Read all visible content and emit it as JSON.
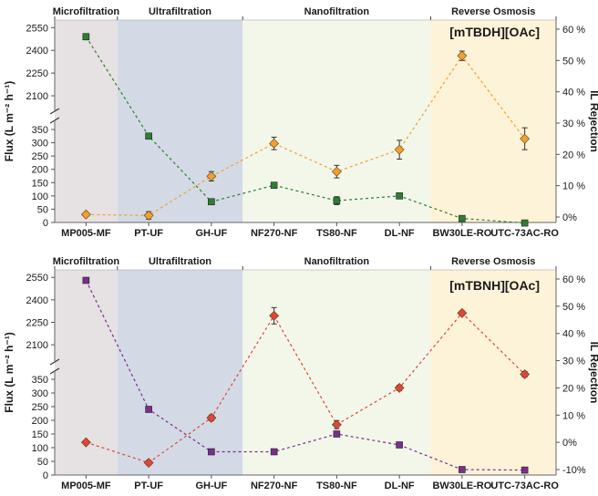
{
  "chart_data": [
    {
      "type": "line",
      "title": "[mTBDH][OAc]",
      "categories": [
        "MP005-MF",
        "PT-UF",
        "GH-UF",
        "NF270-NF",
        "TS80-NF",
        "DL-NF",
        "BW30LE-RO",
        "UTC-73AC-RO"
      ],
      "regions": [
        {
          "label": "Microfiltration",
          "color": "#e6e1e3",
          "categories": [
            "MP005-MF"
          ]
        },
        {
          "label": "Ultrafiltration",
          "color": "#d3dae5",
          "categories": [
            "PT-UF",
            "GH-UF"
          ]
        },
        {
          "label": "Nanofiltration",
          "color": "#f3f7ea",
          "categories": [
            "NF270-NF",
            "TS80-NF",
            "DL-NF"
          ]
        },
        {
          "label": "Reverse Osmosis",
          "color": "#fdf3d8",
          "categories": [
            "BW30LE-RO",
            "UTC-73AC-RO"
          ]
        }
      ],
      "ylabel": "Flux (L m⁻² h⁻¹)",
      "y2label": "IL Rejection",
      "y_lower_ticks": [
        "0",
        "50",
        "100",
        "150",
        "200",
        "250",
        "300",
        "350"
      ],
      "y_upper_ticks": [
        "2100",
        "2250",
        "2400",
        "2550"
      ],
      "y2_ticks": [
        "0%",
        "10 %",
        "20 %",
        "30 %",
        "40 %",
        "50 %",
        "60 %"
      ],
      "y2lim": [
        0,
        60
      ],
      "series": [
        {
          "name": "Flux",
          "axis": "left",
          "color": "#2e7d32",
          "marker": "square",
          "values": [
            2490,
            325,
            78,
            140,
            82,
            100,
            15,
            -2
          ],
          "errors": [
            20,
            0,
            8,
            10,
            15,
            8,
            5,
            5
          ]
        },
        {
          "name": "IL Rejection",
          "axis": "right",
          "color": "#f0a030",
          "marker": "diamond",
          "values": [
            0.8,
            0.5,
            13.0,
            23.5,
            14.5,
            21.5,
            51.5,
            25.0
          ],
          "errors": [
            0.5,
            1.2,
            1.5,
            2.0,
            2.0,
            3.0,
            1.5,
            3.5
          ]
        }
      ]
    },
    {
      "type": "line",
      "title": "[mTBNH][OAc]",
      "categories": [
        "MP005-MF",
        "PT-UF",
        "GH-UF",
        "NF270-NF",
        "TS80-NF",
        "DL-NF",
        "BW30LE-RO",
        "UTC-73AC-RO"
      ],
      "regions": [
        {
          "label": "Microfiltration",
          "color": "#e6e1e3",
          "categories": [
            "MP005-MF"
          ]
        },
        {
          "label": "Ultrafiltration",
          "color": "#d3dae5",
          "categories": [
            "PT-UF",
            "GH-UF"
          ]
        },
        {
          "label": "Nanofiltration",
          "color": "#f3f7ea",
          "categories": [
            "NF270-NF",
            "TS80-NF",
            "DL-NF"
          ]
        },
        {
          "label": "Reverse Osmosis",
          "color": "#fdf3d8",
          "categories": [
            "BW30LE-RO",
            "UTC-73AC-RO"
          ]
        }
      ],
      "ylabel": "Flux (L m⁻² h⁻¹)",
      "y2label": "IL Rejection",
      "y_lower_ticks": [
        "0",
        "50",
        "100",
        "150",
        "200",
        "250",
        "300",
        "350"
      ],
      "y_upper_ticks": [
        "2100",
        "2250",
        "2400",
        "2550"
      ],
      "y2_ticks": [
        "-10%",
        "0%",
        "10 %",
        "20 %",
        "30 %",
        "40 %",
        "50 %",
        "60 %"
      ],
      "y2lim": [
        -10,
        60
      ],
      "series": [
        {
          "name": "Flux",
          "axis": "left",
          "color": "#7b2d8e",
          "marker": "square",
          "values": [
            2530,
            240,
            85,
            85,
            150,
            110,
            20,
            18
          ],
          "errors": [
            12,
            0,
            0,
            0,
            0,
            0,
            0,
            0
          ]
        },
        {
          "name": "IL Rejection",
          "axis": "right",
          "color": "#e0453a",
          "marker": "diamond",
          "values": [
            0,
            -7.5,
            9.0,
            46.5,
            6.5,
            20.0,
            47.5,
            25.0
          ],
          "errors": [
            0.4,
            0.8,
            1.0,
            3.0,
            1.5,
            1.0,
            0.8,
            1.0
          ]
        }
      ]
    }
  ]
}
